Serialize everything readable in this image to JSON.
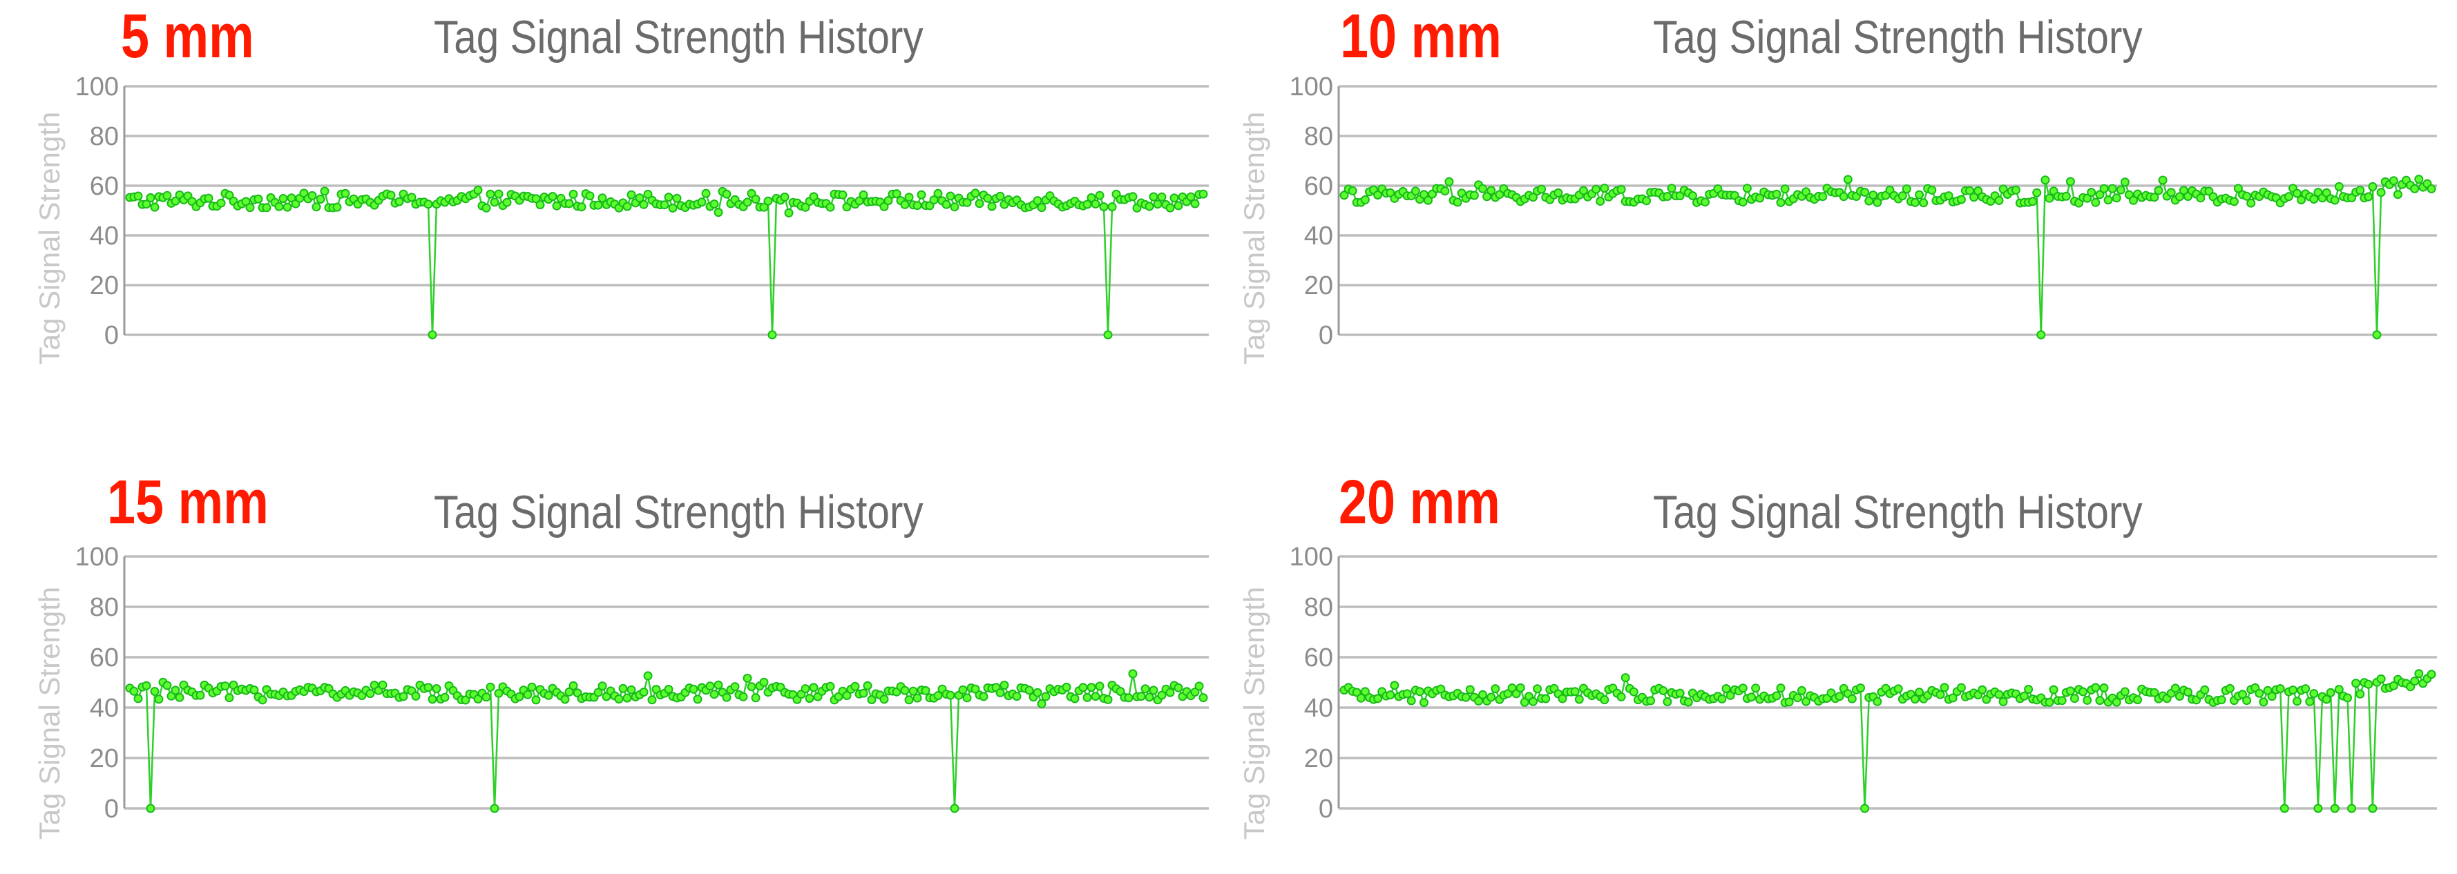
{
  "colors": {
    "label": "#ff1a00",
    "title": "#6b6b6b",
    "series_fill": "#5dff2e",
    "series_stroke": "#18b81a",
    "grid": "#bdbdbd"
  },
  "chart_data": [
    {
      "type": "line",
      "panel_label": "5 mm",
      "title": "Tag Signal Strength History",
      "xlabel": "",
      "ylabel": "Tag Signal Strength",
      "ylim": [
        0,
        100
      ],
      "y_ticks": [
        "0",
        "20",
        "40",
        "60",
        "80",
        "100"
      ],
      "grid": true,
      "series": [
        {
          "baseline": 54,
          "points_estimated": 260,
          "dropouts_to_zero_at_fraction": [
            0.28,
            0.6,
            0.91
          ]
        }
      ]
    },
    {
      "type": "line",
      "panel_label": "10 mm",
      "title": "Tag Signal Strength History",
      "xlabel": "",
      "ylabel": "Tag Signal Strength",
      "ylim": [
        0,
        100
      ],
      "y_ticks": [
        "0",
        "20",
        "40",
        "60",
        "80",
        "100"
      ],
      "grid": true,
      "series": [
        {
          "baseline": 56,
          "final_level": 61,
          "points_estimated": 260,
          "dropouts_to_zero_at_fraction": [
            0.64,
            0.95
          ]
        }
      ]
    },
    {
      "type": "line",
      "panel_label": "15 mm",
      "title": "Tag Signal Strength History",
      "xlabel": "",
      "ylabel": "Tag Signal Strength",
      "ylim": [
        0,
        100
      ],
      "y_ticks": [
        "0",
        "20",
        "40",
        "60",
        "80",
        "100"
      ],
      "grid": true,
      "series": [
        {
          "baseline": 46,
          "points_estimated": 260,
          "dropouts_to_zero_at_fraction": [
            0.02,
            0.34,
            0.77
          ]
        }
      ]
    },
    {
      "type": "line",
      "panel_label": "20 mm",
      "title": "Tag Signal Strength History",
      "xlabel": "",
      "ylabel": "Tag Signal Strength",
      "ylim": [
        0,
        100
      ],
      "y_ticks": [
        "0",
        "20",
        "40",
        "60",
        "80",
        "100"
      ],
      "grid": true,
      "series": [
        {
          "baseline": 45,
          "final_level": 52,
          "points_estimated": 260,
          "dropouts_to_zero_at_fraction": [
            0.48,
            0.865,
            0.895,
            0.91,
            0.925,
            0.945
          ]
        }
      ]
    }
  ]
}
